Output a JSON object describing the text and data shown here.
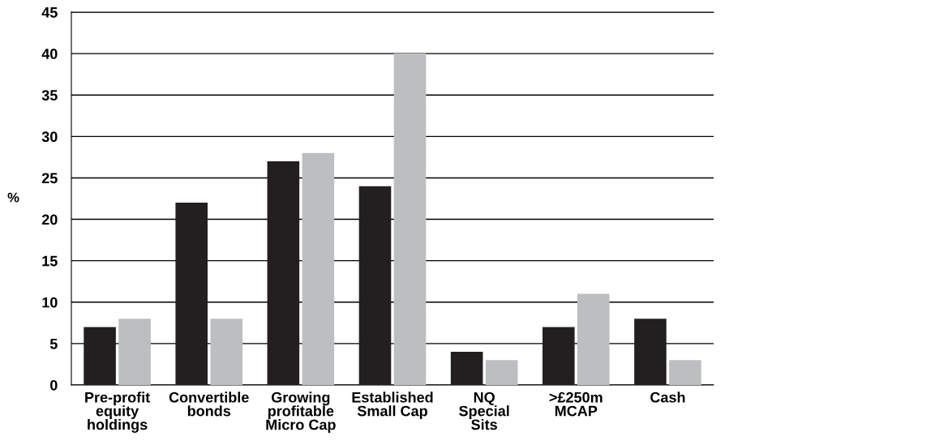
{
  "chart_data": {
    "type": "bar",
    "ylabel": "%",
    "categories": [
      "Pre-profit\nequity\nholdings",
      "Convertible\nbonds",
      "Growing\nprofitable\nMicro Cap",
      "Established\nSmall Cap",
      "NQ\nSpecial\nSits",
      ">£250m\nMCAP",
      "Cash"
    ],
    "series": [
      {
        "color": "#231f20",
        "values": [
          7,
          22,
          27,
          24,
          4,
          7,
          8
        ]
      },
      {
        "color": "#bcbec0",
        "values": [
          8,
          8,
          28,
          40,
          3,
          11,
          3
        ]
      }
    ],
    "ylim": [
      0,
      45
    ],
    "yticks": [
      0,
      5,
      10,
      15,
      20,
      25,
      30,
      35,
      40,
      45
    ],
    "grid": "y"
  }
}
